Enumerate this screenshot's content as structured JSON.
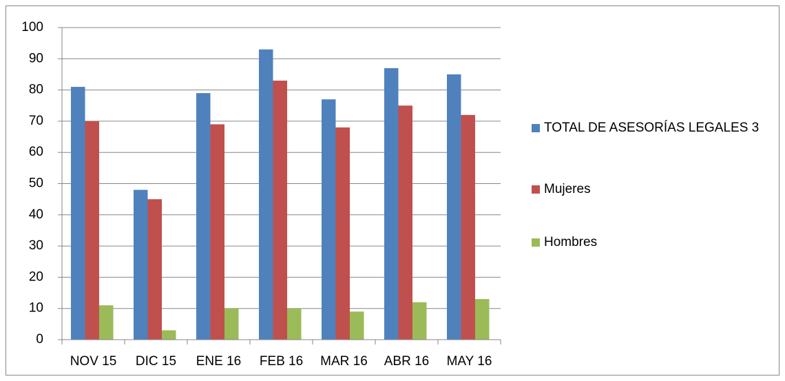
{
  "chart_data": {
    "type": "bar",
    "categories": [
      "NOV 15",
      "DIC 15",
      "ENE 16",
      "FEB 16",
      "MAR 16",
      "ABR 16",
      "MAY 16"
    ],
    "series": [
      {
        "name": "TOTAL DE ASESORÍAS LEGALES 3",
        "color": "#4f81bd",
        "values": [
          81,
          48,
          79,
          93,
          77,
          87,
          85
        ]
      },
      {
        "name": "Mujeres",
        "color": "#c0504d",
        "values": [
          70,
          45,
          69,
          83,
          68,
          75,
          72
        ]
      },
      {
        "name": "Hombres",
        "color": "#9bbb59",
        "values": [
          11,
          3,
          10,
          10,
          9,
          12,
          13
        ]
      }
    ],
    "ylim": [
      0,
      100
    ],
    "yticks": [
      0,
      10,
      20,
      30,
      40,
      50,
      60,
      70,
      80,
      90,
      100
    ],
    "grid": true,
    "legend": "right"
  }
}
